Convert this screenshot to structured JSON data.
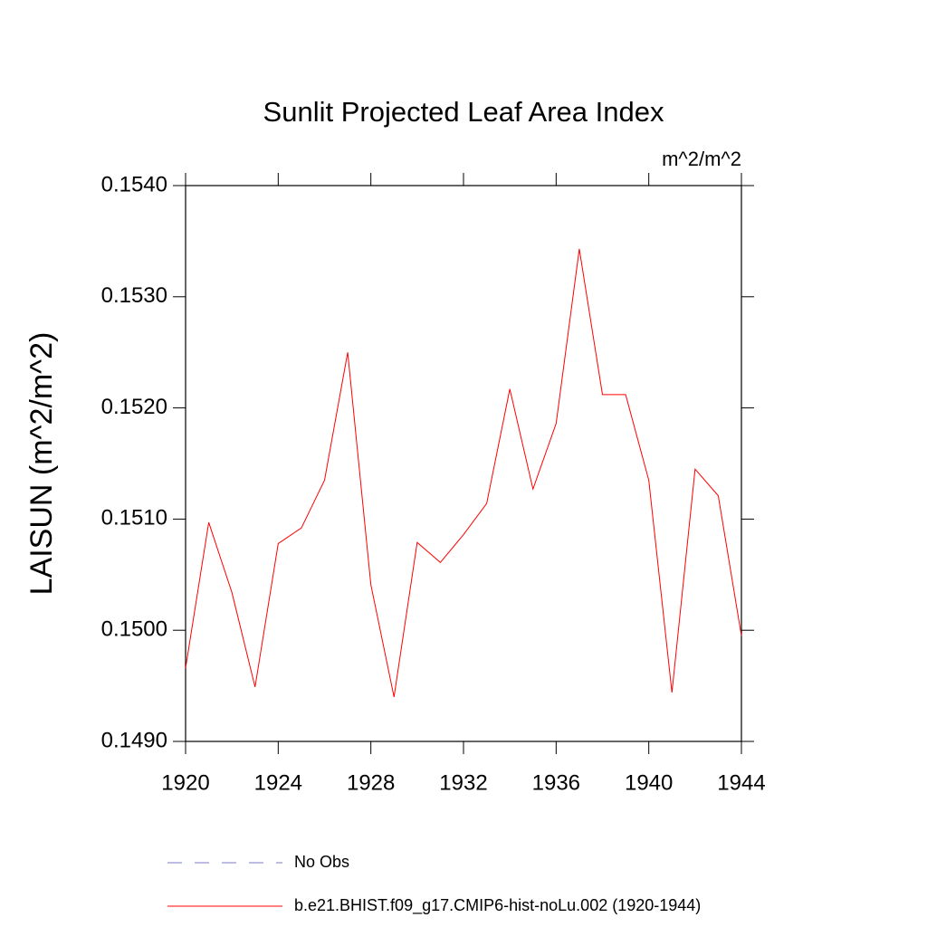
{
  "chart_data": {
    "type": "line",
    "title": "Sunlit Projected Leaf Area Index",
    "units": "m^2/m^2",
    "y_label": "LAISUN  (m^2/m^2)",
    "x": [
      1920,
      1921,
      1922,
      1923,
      1924,
      1925,
      1926,
      1927,
      1928,
      1929,
      1930,
      1931,
      1932,
      1933,
      1934,
      1935,
      1936,
      1937,
      1938,
      1939,
      1940,
      1941,
      1942,
      1943,
      1944
    ],
    "series": [
      {
        "name": "b.e21.BHIST.f09_g17.CMIP6-hist-noLu.002 (1920-1944)",
        "color": "#ff0000",
        "values": [
          0.14966,
          0.15097,
          0.15034,
          0.14949,
          0.15078,
          0.15092,
          0.15135,
          0.1525,
          0.15041,
          0.1494,
          0.15079,
          0.15061,
          0.15086,
          0.15114,
          0.15217,
          0.15127,
          0.15186,
          0.15343,
          0.15212,
          0.15212,
          0.15135,
          0.14944,
          0.15145,
          0.15121,
          0.14995
        ]
      }
    ],
    "legend_extra": [
      {
        "name": "No Obs",
        "color": "#7b7bc8",
        "style": "dashed"
      }
    ],
    "xlim": [
      1920,
      1944
    ],
    "xticks": [
      1920,
      1924,
      1928,
      1932,
      1936,
      1940,
      1944
    ],
    "ylim": [
      0.149,
      0.154
    ],
    "yticks": [
      {
        "value": 0.149,
        "label": "0.1490"
      },
      {
        "value": 0.15,
        "label": "0.1500"
      },
      {
        "value": 0.151,
        "label": "0.1510"
      },
      {
        "value": 0.152,
        "label": "0.1520"
      },
      {
        "value": 0.153,
        "label": "0.1530"
      },
      {
        "value": 0.154,
        "label": "0.1540"
      }
    ]
  }
}
